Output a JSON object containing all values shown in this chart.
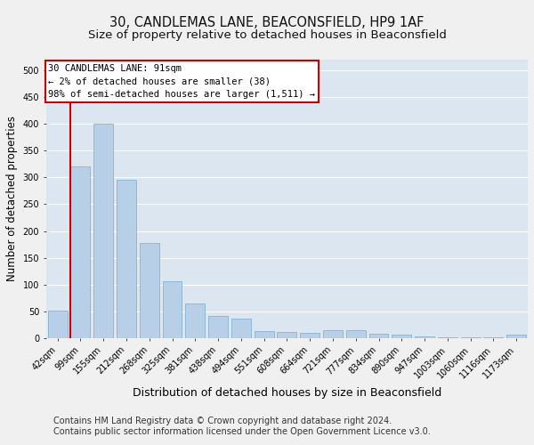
{
  "title_line1": "30, CANDLEMAS LANE, BEACONSFIELD, HP9 1AF",
  "title_line2": "Size of property relative to detached houses in Beaconsfield",
  "xlabel": "Distribution of detached houses by size in Beaconsfield",
  "ylabel": "Number of detached properties",
  "footnote1": "Contains HM Land Registry data © Crown copyright and database right 2024.",
  "footnote2": "Contains public sector information licensed under the Open Government Licence v3.0.",
  "annotation_line1": "30 CANDLEMAS LANE: 91sqm",
  "annotation_line2": "← 2% of detached houses are smaller (38)",
  "annotation_line3": "98% of semi-detached houses are larger (1,511) →",
  "bar_labels": [
    "42sqm",
    "99sqm",
    "155sqm",
    "212sqm",
    "268sqm",
    "325sqm",
    "381sqm",
    "438sqm",
    "494sqm",
    "551sqm",
    "608sqm",
    "664sqm",
    "721sqm",
    "777sqm",
    "834sqm",
    "890sqm",
    "947sqm",
    "1003sqm",
    "1060sqm",
    "1116sqm",
    "1173sqm"
  ],
  "bar_values": [
    52,
    320,
    400,
    295,
    178,
    107,
    65,
    42,
    37,
    13,
    12,
    10,
    15,
    15,
    9,
    6,
    4,
    2,
    1,
    1,
    6
  ],
  "bar_color": "#b8cfe8",
  "bar_edge_color": "#7aaace",
  "vline_color": "#cc0000",
  "annotation_box_color": "#cc0000",
  "ylim": [
    0,
    520
  ],
  "yticks": [
    0,
    50,
    100,
    150,
    200,
    250,
    300,
    350,
    400,
    450,
    500
  ],
  "bg_color": "#dce6f0",
  "grid_color": "#ffffff",
  "fig_bg_color": "#f0f0f0",
  "title1_fontsize": 10.5,
  "title2_fontsize": 9.5,
  "xlabel_fontsize": 9,
  "ylabel_fontsize": 8.5,
  "tick_fontsize": 7,
  "annotation_fontsize": 7.5,
  "footnote_fontsize": 7
}
